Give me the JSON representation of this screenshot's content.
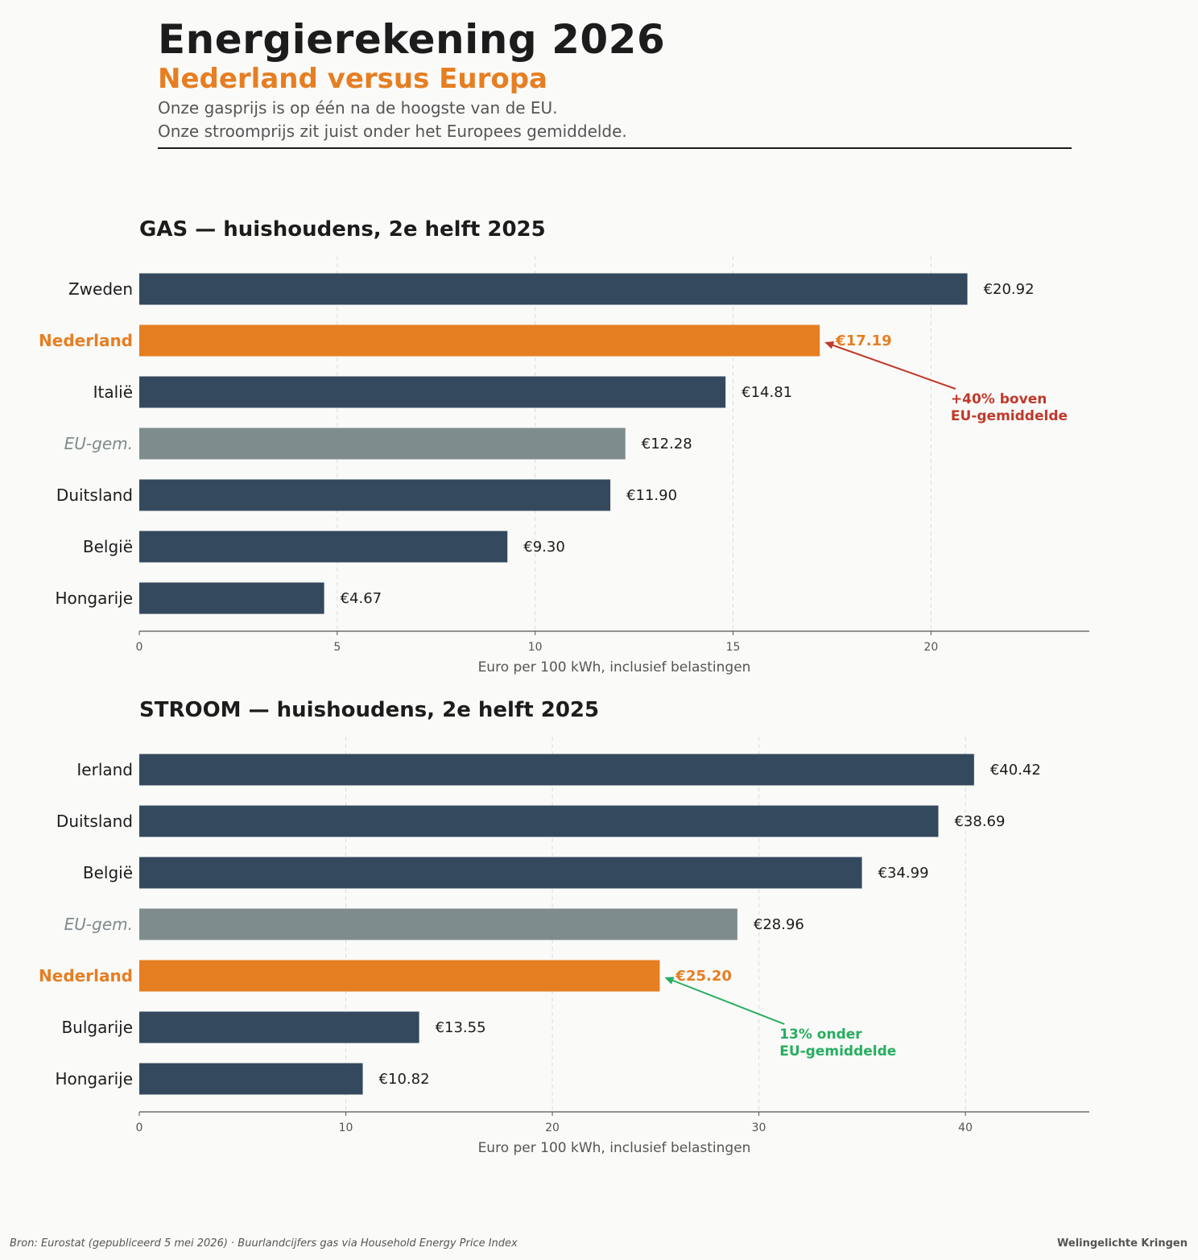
{
  "header": {
    "title": "Energierekening 2026",
    "subtitle": "Nederland versus Europa",
    "intro_line1": "Onze gasprijs is op één na de hoogste van de EU.",
    "intro_line2": "Onze stroomprijs zit juist onder het Europees gemiddelde."
  },
  "colors": {
    "default": "#34495e",
    "highlight": "#e67e22",
    "average": "#7f8c8d",
    "above": "#c0392b",
    "below": "#27ae60"
  },
  "chart_data": [
    {
      "type": "bar",
      "orientation": "horizontal",
      "title": "GAS — huishoudens, 2e helft 2025",
      "xlabel": "Euro per 100 kWh, inclusief belastingen",
      "xlim": [
        0,
        24
      ],
      "xticks": [
        0,
        5,
        10,
        15,
        20
      ],
      "grid": true,
      "categories": [
        "Zweden",
        "Nederland",
        "Italië",
        "EU-gem.",
        "Duitsland",
        "België",
        "Hongarije"
      ],
      "values": [
        20.92,
        17.19,
        14.81,
        12.28,
        11.9,
        9.3,
        4.67
      ],
      "value_labels": [
        "€20.92",
        "€17.19",
        "€14.81",
        "€12.28",
        "€11.90",
        "€9.30",
        "€4.67"
      ],
      "roles": [
        "default",
        "highlight",
        "default",
        "average",
        "default",
        "default",
        "default"
      ],
      "annotation": {
        "line1": "+40% boven",
        "line2": "EU-gemiddelde",
        "target": "Nederland",
        "color_role": "above",
        "text_x": 20.5
      }
    },
    {
      "type": "bar",
      "orientation": "horizontal",
      "title": "STROOM — huishoudens, 2e helft 2025",
      "xlabel": "Euro per 100 kWh, inclusief belastingen",
      "xlim": [
        0,
        46
      ],
      "xticks": [
        0,
        10,
        20,
        30,
        40
      ],
      "grid": true,
      "categories": [
        "Ierland",
        "Duitsland",
        "België",
        "EU-gem.",
        "Nederland",
        "Bulgarije",
        "Hongarije"
      ],
      "values": [
        40.42,
        38.69,
        34.99,
        28.96,
        25.2,
        13.55,
        10.82
      ],
      "value_labels": [
        "€40.42",
        "€38.69",
        "€34.99",
        "€28.96",
        "€25.20",
        "€13.55",
        "€10.82"
      ],
      "roles": [
        "default",
        "default",
        "default",
        "average",
        "highlight",
        "default",
        "default"
      ],
      "annotation": {
        "line1": "13% onder",
        "line2": "EU-gemiddelde",
        "target": "Nederland",
        "color_role": "below",
        "text_x": 31.0
      }
    }
  ],
  "footer": {
    "source": "Bron: Eurostat (gepubliceerd 5 mei 2026) · Buurlandcijfers gas via Household Energy Price Index",
    "brand": "Welingelichte Kringen"
  }
}
